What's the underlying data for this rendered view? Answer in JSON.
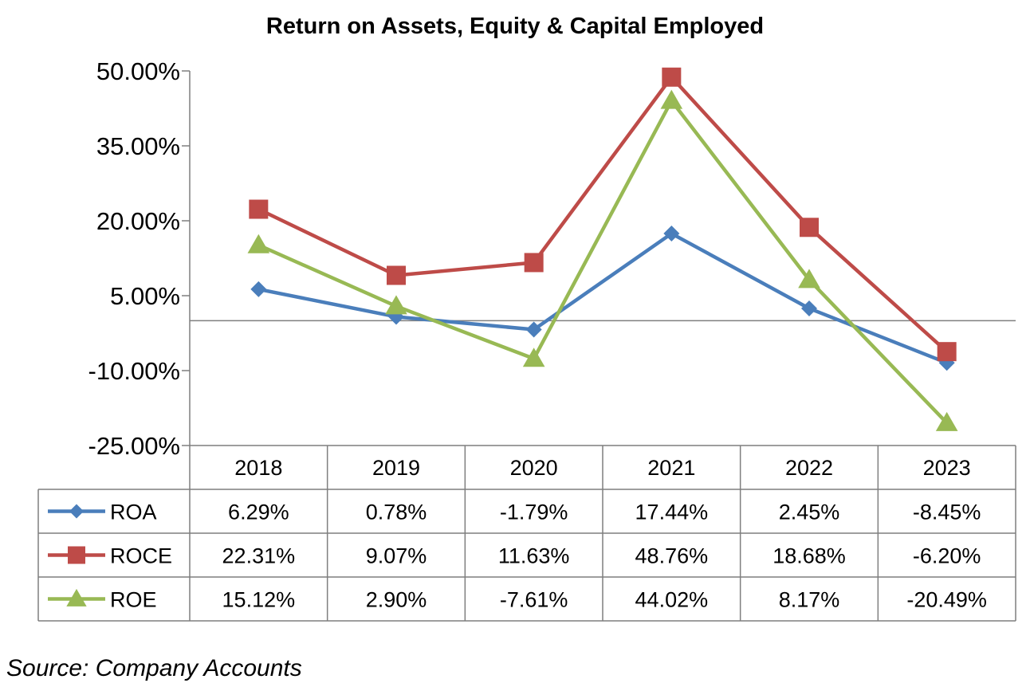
{
  "chart_data": {
    "type": "line",
    "title": "Return on Assets, Equity & Capital Employed",
    "categories": [
      "2018",
      "2019",
      "2020",
      "2021",
      "2022",
      "2023"
    ],
    "ylim": [
      -25,
      50
    ],
    "yticks": [
      50,
      35,
      20,
      5,
      -10,
      -25
    ],
    "ytick_labels": [
      "50.00%",
      "35.00%",
      "20.00%",
      "5.00%",
      "-10.00%",
      "-25.00%"
    ],
    "grid": false,
    "legend": "data-table",
    "series": [
      {
        "name": "ROA",
        "color": "#4a7ebb",
        "marker": "diamond",
        "values": [
          6.29,
          0.78,
          -1.79,
          17.44,
          2.45,
          -8.45
        ],
        "labels": [
          "6.29%",
          "0.78%",
          "-1.79%",
          "17.44%",
          "2.45%",
          "-8.45%"
        ]
      },
      {
        "name": "ROCE",
        "color": "#be4b48",
        "marker": "square",
        "values": [
          22.31,
          9.07,
          11.63,
          48.76,
          18.68,
          -6.2
        ],
        "labels": [
          "22.31%",
          "9.07%",
          "11.63%",
          "48.76%",
          "18.68%",
          "-6.20%"
        ]
      },
      {
        "name": "ROE",
        "color": "#98b954",
        "marker": "triangle",
        "values": [
          15.12,
          2.9,
          -7.61,
          44.02,
          8.17,
          -20.49
        ],
        "labels": [
          "15.12%",
          "2.90%",
          "-7.61%",
          "44.02%",
          "8.17%",
          "-20.49%"
        ]
      }
    ]
  },
  "source": "Source: Company Accounts"
}
